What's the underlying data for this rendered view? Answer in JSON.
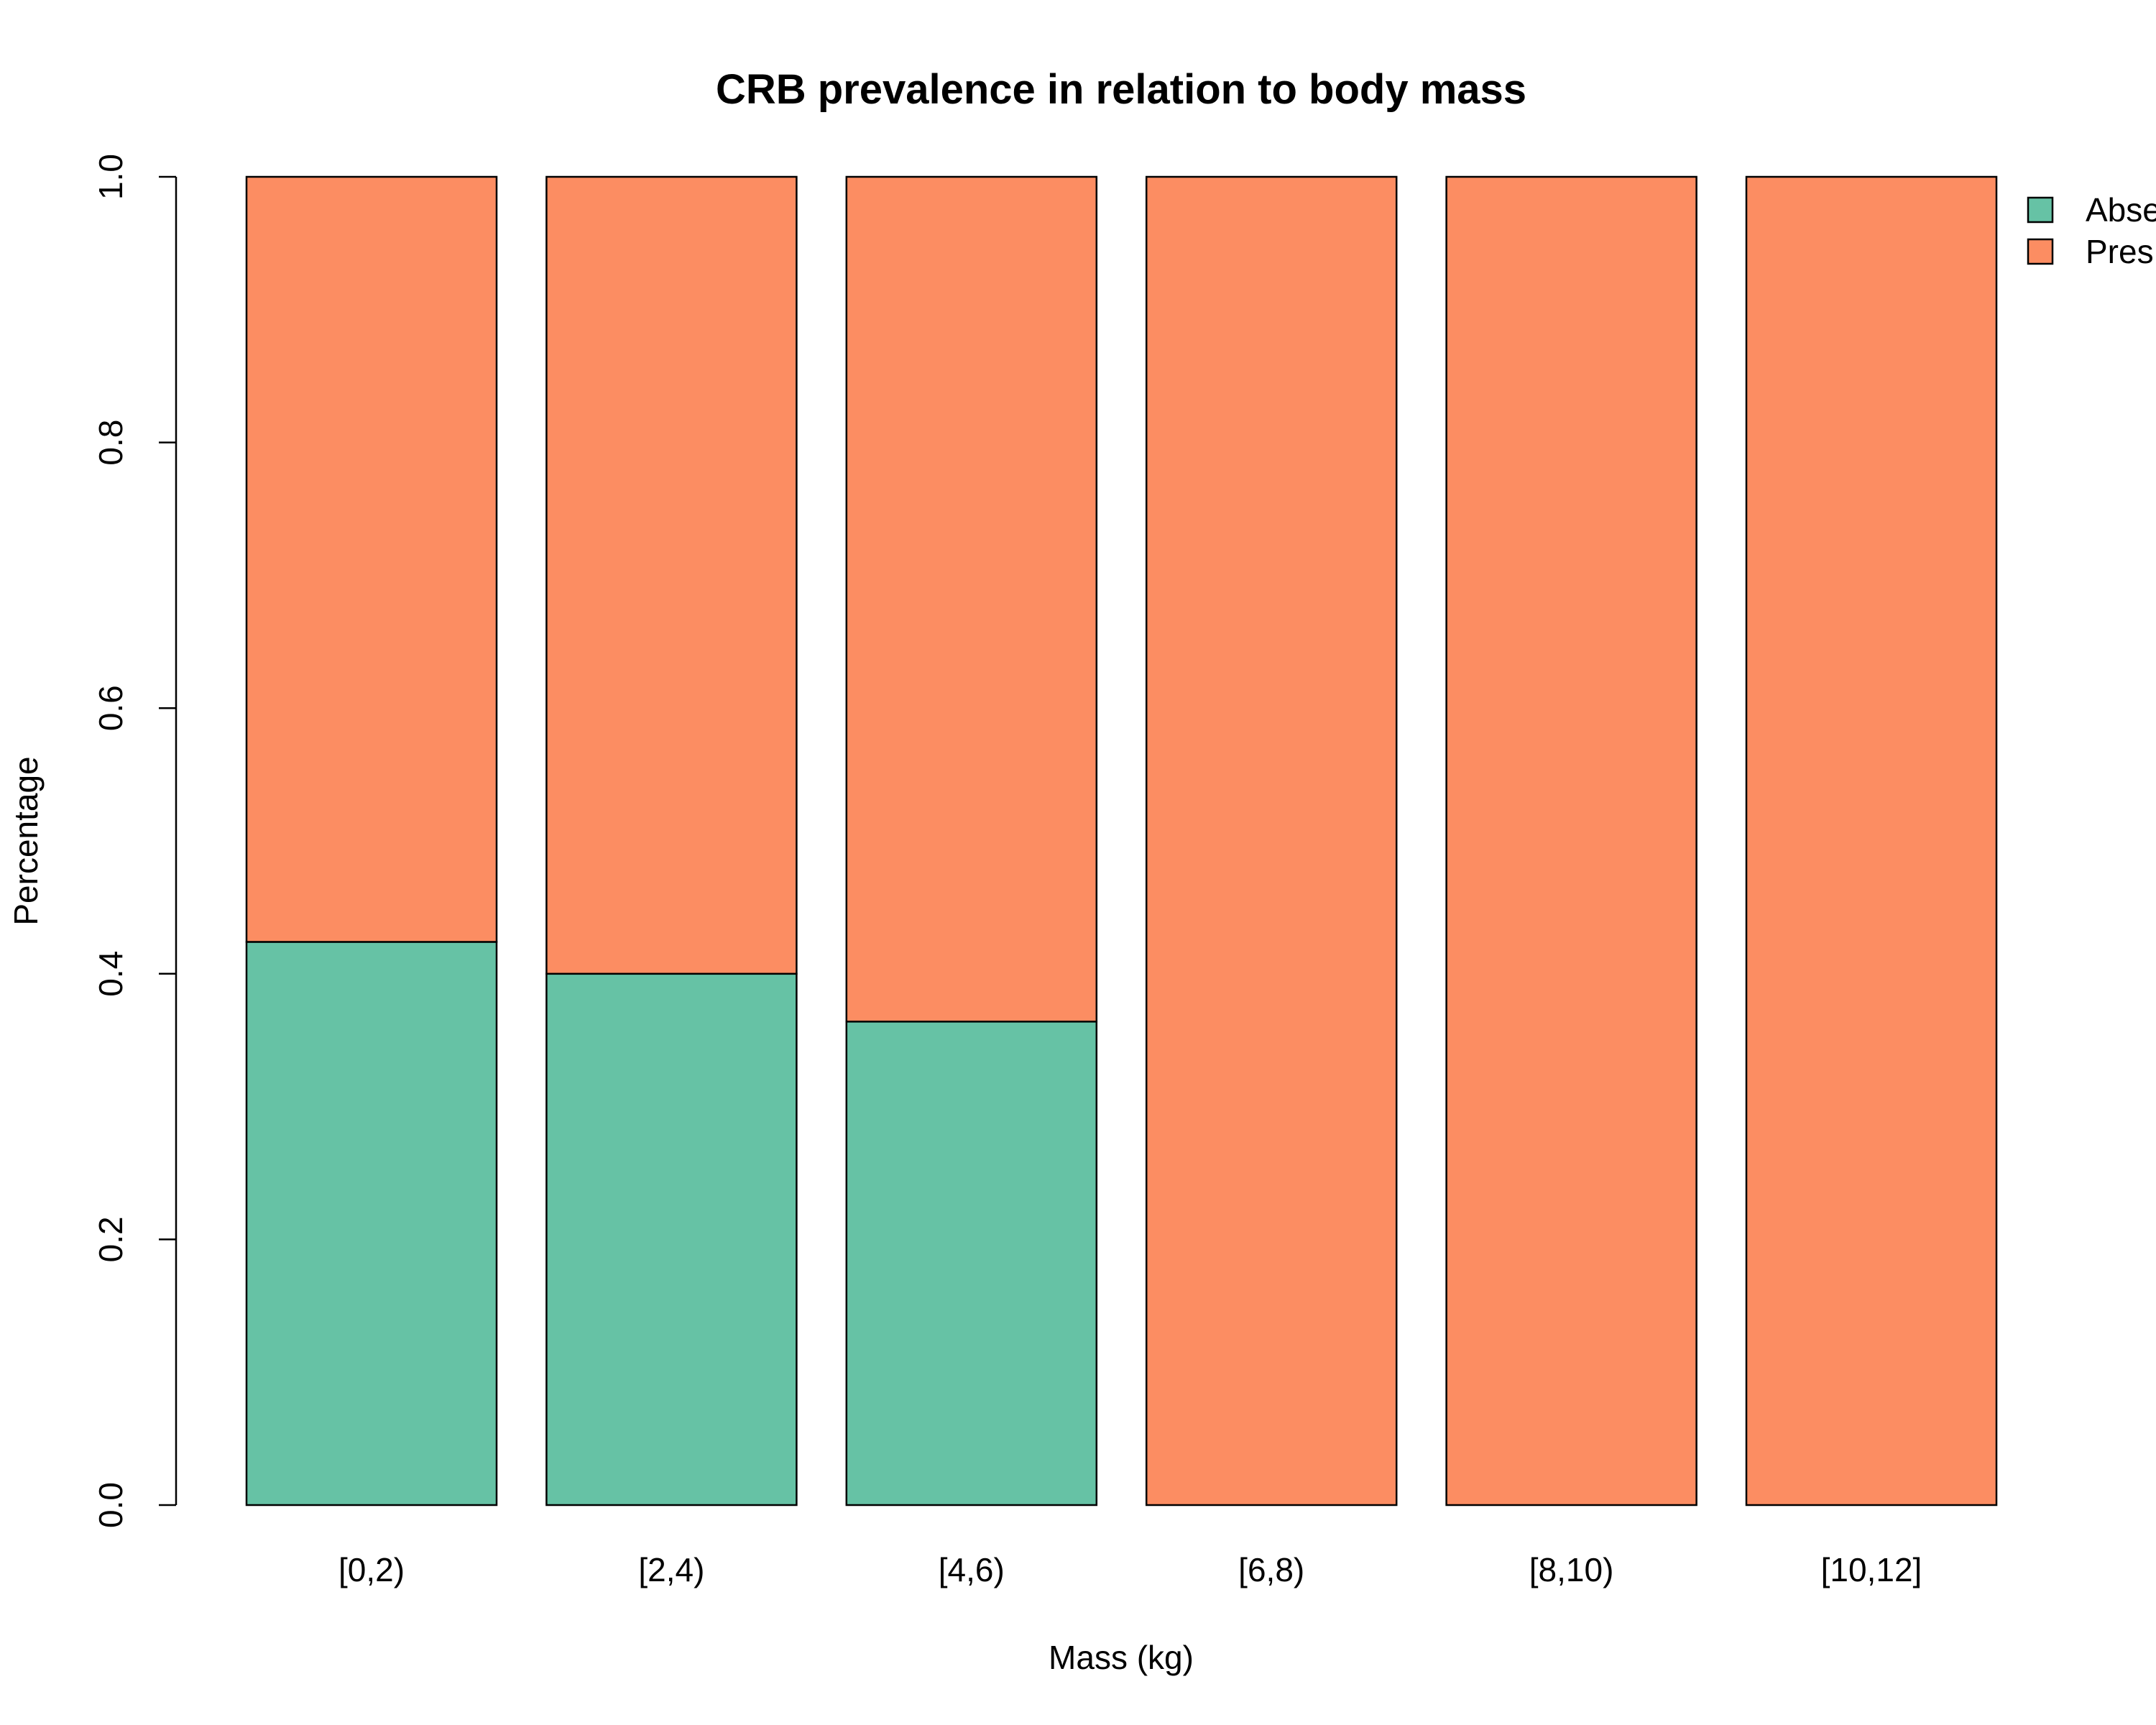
{
  "chart_data": {
    "type": "bar",
    "stacked": true,
    "title": "CRB prevalence in relation to body mass",
    "xlabel": "Mass (kg)",
    "ylabel": "Percentage",
    "ylim": [
      0,
      1
    ],
    "yticks": [
      "0.0",
      "0.2",
      "0.4",
      "0.6",
      "0.8",
      "1.0"
    ],
    "categories": [
      "[0,2)",
      "[2,4)",
      "[4,6)",
      "[6,8)",
      "[8,10)",
      "[10,12]"
    ],
    "series": [
      {
        "name": "Absent",
        "legend_visible": "Abse",
        "color": "#66C2A5",
        "values": [
          0.424,
          0.4,
          0.364,
          0,
          0,
          0
        ]
      },
      {
        "name": "Present",
        "legend_visible": "Pres",
        "color": "#FC8D62",
        "values": [
          0.576,
          0.6,
          0.636,
          1,
          1,
          1
        ]
      }
    ],
    "legend_position": "top-right",
    "grid": false
  }
}
